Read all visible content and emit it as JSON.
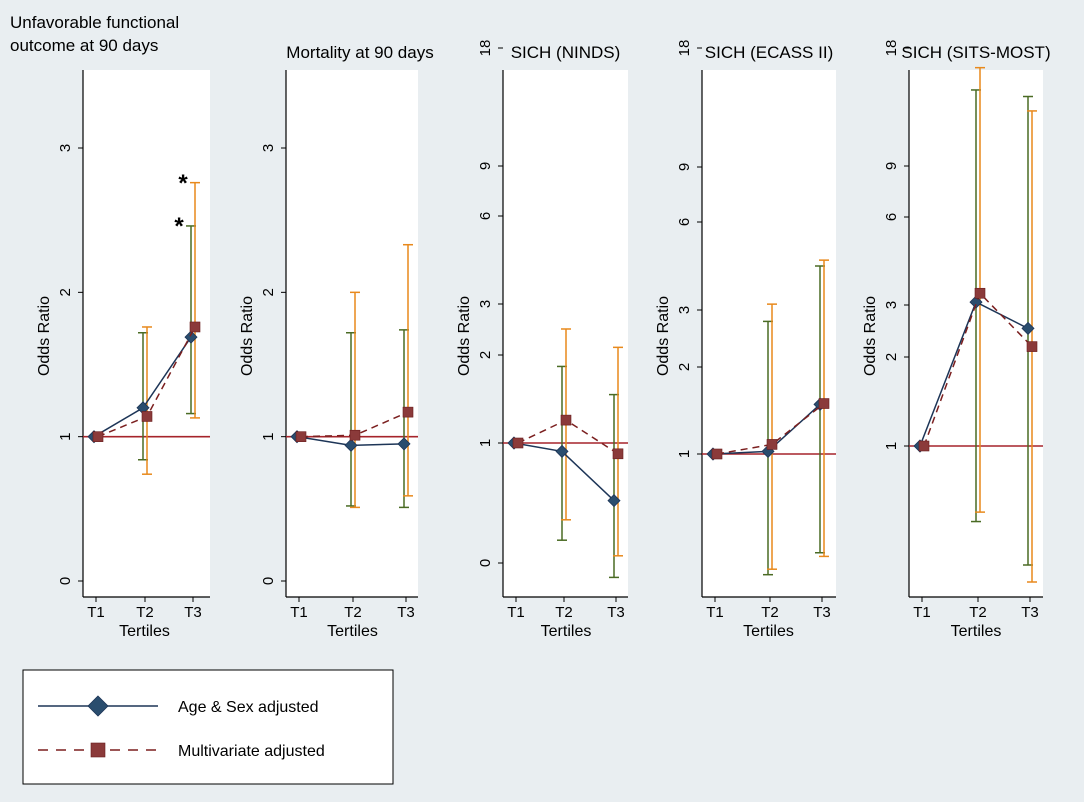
{
  "chart_data": [
    {
      "type": "line",
      "title_lines": [
        "Unfavorable functional",
        "outcome at 90 days"
      ],
      "ylabel": "Odds Ratio",
      "xlabel": "Tertiles",
      "categories": [
        "T1",
        "T2",
        "T3"
      ],
      "yticks": [
        "0",
        "1",
        "2",
        "3"
      ],
      "ylim": [
        0,
        3.5
      ],
      "reference_line": 1,
      "series": [
        {
          "name": "Age & Sex adjusted",
          "values": [
            1.0,
            1.2,
            1.69
          ],
          "ci_low": [
            1.0,
            0.84,
            1.16
          ],
          "ci_high": [
            1.0,
            1.72,
            2.46
          ]
        },
        {
          "name": "Multivariate adjusted",
          "values": [
            1.0,
            1.14,
            1.76
          ],
          "ci_low": [
            1.0,
            0.74,
            1.13
          ],
          "ci_high": [
            1.0,
            1.76,
            2.76
          ]
        }
      ],
      "annotations": [
        {
          "text": "*",
          "category": "T3",
          "series": "Age & Sex adjusted",
          "y": 2.5
        },
        {
          "text": "*",
          "category": "T3",
          "series": "Multivariate adjusted",
          "y": 2.8
        }
      ]
    },
    {
      "type": "line",
      "title_lines": [
        "Mortality at 90 days"
      ],
      "ylabel": "Odds Ratio",
      "xlabel": "Tertiles",
      "categories": [
        "T1",
        "T2",
        "T3"
      ],
      "yticks": [
        "0",
        "1",
        "2",
        "3"
      ],
      "ylim": [
        0,
        3.5
      ],
      "reference_line": 1,
      "series": [
        {
          "name": "Age & Sex adjusted",
          "values": [
            1.0,
            0.94,
            0.95
          ],
          "ci_low": [
            1.0,
            0.52,
            0.51
          ],
          "ci_high": [
            1.0,
            1.72,
            1.74
          ]
        },
        {
          "name": "Multivariate adjusted",
          "values": [
            1.0,
            1.01,
            1.17
          ],
          "ci_low": [
            1.0,
            0.51,
            0.59
          ],
          "ci_high": [
            1.0,
            2.0,
            2.33
          ]
        }
      ]
    },
    {
      "type": "line",
      "title_lines": [
        "SICH (NINDS)"
      ],
      "ylabel": "Odds Ratio",
      "xlabel": "Tertiles",
      "categories": [
        "T1",
        "T2",
        "T3"
      ],
      "yticks": [
        "0",
        "1",
        "2",
        "3",
        "6",
        "9",
        "18"
      ],
      "ytick_values": [
        0,
        1,
        2,
        3,
        6,
        9,
        18
      ],
      "ylim": [
        -0.1,
        18
      ],
      "reference_line": 1,
      "series": [
        {
          "name": "Age & Sex adjusted",
          "values": [
            1.0,
            0.93,
            0.52
          ],
          "ci_low": [
            1.0,
            0.19,
            -0.12
          ],
          "ci_high": [
            1.0,
            1.87,
            1.55
          ]
        },
        {
          "name": "Multivariate adjusted",
          "values": [
            1.0,
            1.26,
            0.91
          ],
          "ci_low": [
            1.0,
            0.36,
            0.06
          ],
          "ci_high": [
            1.0,
            2.51,
            2.15
          ]
        }
      ]
    },
    {
      "type": "line",
      "title_lines": [
        "SICH (ECASS II)"
      ],
      "ylabel": "Odds Ratio",
      "xlabel": "Tertiles",
      "categories": [
        "T1",
        "T2",
        "T3"
      ],
      "yticks": [
        "1",
        "2",
        "3",
        "6",
        "9",
        "18"
      ],
      "ytick_values": [
        1,
        2,
        3,
        6,
        9,
        18
      ],
      "ylim": [
        0.3,
        18
      ],
      "reference_line": 1,
      "series": [
        {
          "name": "Age & Sex adjusted",
          "values": [
            1.0,
            1.03,
            1.57
          ],
          "ci_low": [
            1.0,
            0.34,
            0.46
          ],
          "ci_high": [
            1.0,
            2.8,
            4.5
          ]
        },
        {
          "name": "Multivariate adjusted",
          "values": [
            1.0,
            1.11,
            1.58
          ],
          "ci_low": [
            1.0,
            0.37,
            0.44
          ],
          "ci_high": [
            1.0,
            3.2,
            4.7
          ]
        }
      ]
    },
    {
      "type": "line",
      "title_lines": [
        "SICH (SITS-MOST)"
      ],
      "ylabel": "Odds Ratio",
      "xlabel": "Tertiles",
      "categories": [
        "T1",
        "T2",
        "T3"
      ],
      "yticks": [
        "1",
        "2",
        "3",
        "6",
        "9",
        "18"
      ],
      "ytick_values": [
        1,
        2,
        3,
        6,
        9,
        18
      ],
      "ylim": [
        0.28,
        18
      ],
      "reference_line": 1,
      "series": [
        {
          "name": "Age & Sex adjusted",
          "values": [
            1.0,
            3.1,
            2.55
          ],
          "ci_low": [
            1.0,
            0.6,
            0.37
          ],
          "ci_high": [
            1.0,
            14.8,
            14.3
          ]
        },
        {
          "name": "Multivariate adjusted",
          "values": [
            1.0,
            3.4,
            2.2
          ],
          "ci_low": [
            1.0,
            0.65,
            0.28
          ],
          "ci_high": [
            1.0,
            16.5,
            13.2
          ]
        }
      ]
    }
  ],
  "legend": {
    "items": [
      {
        "label": "Age & Sex adjusted",
        "style": "solid",
        "marker": "diamond"
      },
      {
        "label": "Multivariate adjusted",
        "style": "dashed",
        "marker": "square"
      }
    ]
  },
  "colors": {
    "series_age_sex": "#1d3557",
    "series_multivariate": "#7b1f1f",
    "ci_age_sex": "#4a6b24",
    "ci_multivariate": "#e8891c",
    "reference_line": "#a6242b",
    "panel_bg": "#ffffff",
    "outer_bg": "#e9eef1"
  }
}
